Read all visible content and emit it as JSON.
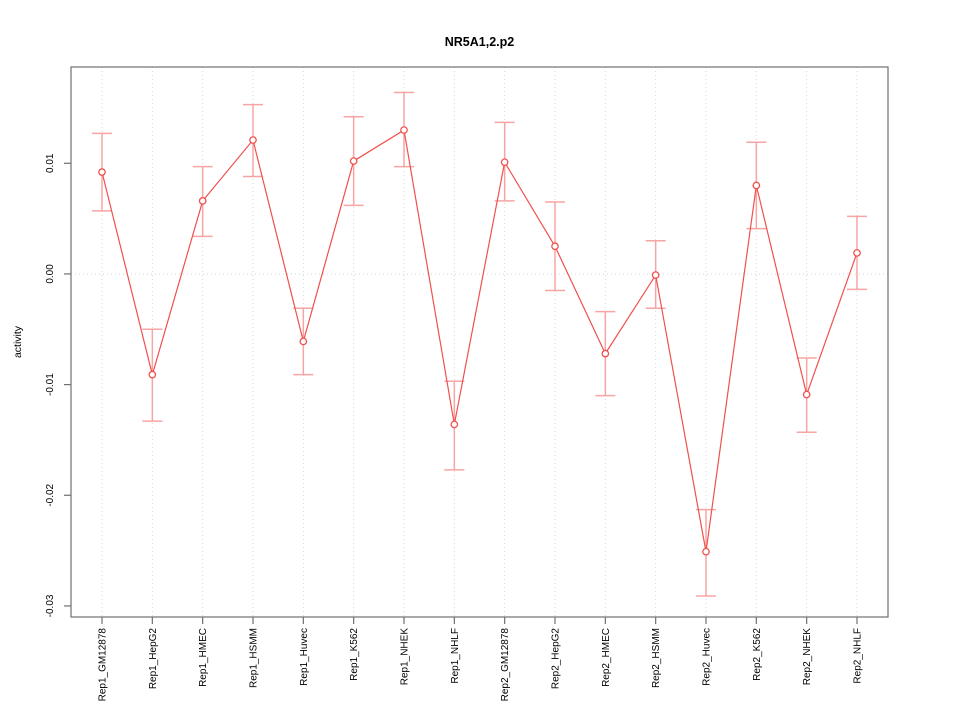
{
  "page": {
    "background": "#ffffff"
  },
  "chart_data": {
    "type": "line",
    "title": "NR5A1,2.p2",
    "xlabel": "",
    "ylabel": "activity",
    "legend": "none",
    "categories": [
      "Rep1_GM12878",
      "Rep1_HepG2",
      "Rep1_HMEC",
      "Rep1_HSMM",
      "Rep1_Huvec",
      "Rep1_K562",
      "Rep1_NHEK",
      "Rep1_NHLF",
      "Rep2_GM12878",
      "Rep2_HepG2",
      "Rep2_HMEC",
      "Rep2_HSMM",
      "Rep2_Huvec",
      "Rep2_K562",
      "Rep2_NHEK",
      "Rep2_NHLF"
    ],
    "series": [
      {
        "name": "activity",
        "marker": "open-circle",
        "values": [
          0.0092,
          -0.0091,
          0.0066,
          0.0121,
          -0.0061,
          0.0102,
          0.013,
          -0.0136,
          0.0101,
          0.0025,
          -0.0072,
          -0.0001,
          -0.0251,
          0.008,
          -0.0109,
          0.0019
        ],
        "err_high": [
          0.0127,
          -0.005,
          0.0097,
          0.0153,
          -0.0031,
          0.0142,
          0.0164,
          -0.0097,
          0.0137,
          0.0065,
          -0.0034,
          0.003,
          -0.0213,
          0.0119,
          -0.0076,
          0.0052
        ],
        "err_low": [
          0.0057,
          -0.0133,
          0.0034,
          0.0088,
          -0.0091,
          0.0062,
          0.0097,
          -0.0177,
          0.0066,
          -0.0015,
          -0.011,
          -0.0031,
          -0.0291,
          0.0041,
          -0.0143,
          -0.0014
        ]
      }
    ],
    "ylim": [
      -0.031,
      0.0187
    ],
    "yticks": [
      0.01,
      0.0,
      -0.01,
      -0.02,
      -0.03
    ],
    "ytick_labels": [
      "0.01",
      "0.00",
      "-0.01",
      "-0.02",
      "-0.03"
    ],
    "grid": {
      "vertical": "dotted-per-category",
      "horizontal_at": [
        0
      ]
    },
    "colors": {
      "series": "#f0504d",
      "error_bar": "#f7a5a4",
      "grid": "#d6d6d6",
      "axis": "#707070",
      "text": "#000000",
      "background": "#ffffff"
    }
  }
}
